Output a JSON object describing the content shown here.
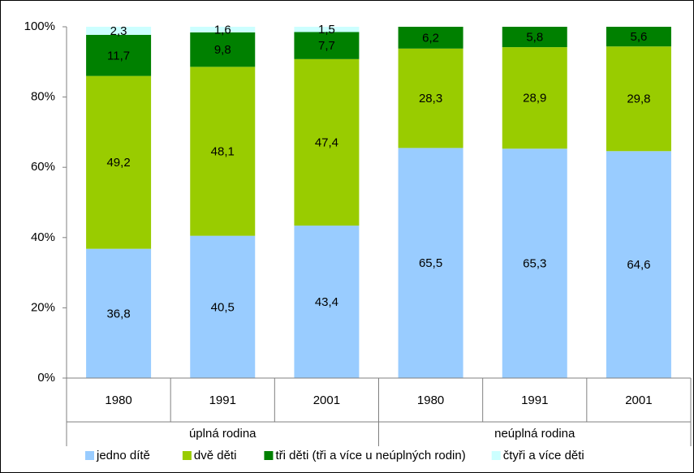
{
  "chart_data": {
    "type": "stacked_bar",
    "groups": [
      {
        "name": "úplná rodina",
        "categories": [
          "1980",
          "1991",
          "2001"
        ]
      },
      {
        "name": "neúplná rodina",
        "categories": [
          "1980",
          "1991",
          "2001"
        ]
      }
    ],
    "series": [
      {
        "name": "jedno dítě",
        "color": "#99ccff",
        "values": [
          36.8,
          40.5,
          43.4,
          65.5,
          65.3,
          64.6
        ],
        "value_labels": [
          "36,8",
          "40,5",
          "43,4",
          "65,5",
          "65,3",
          "64,6"
        ]
      },
      {
        "name": "dvě děti",
        "color": "#99cc00",
        "values": [
          49.2,
          48.1,
          47.4,
          28.3,
          28.9,
          29.8
        ],
        "value_labels": [
          "49,2",
          "48,1",
          "47,4",
          "28,3",
          "28,9",
          "29,8"
        ]
      },
      {
        "name": "tři děti (tři a více u neúplných rodin)",
        "color": "#008000",
        "values": [
          11.7,
          9.8,
          7.7,
          6.2,
          5.8,
          5.6
        ],
        "value_labels": [
          "11,7",
          "9,8",
          "7,7",
          "6,2",
          "5,8",
          "5,6"
        ]
      },
      {
        "name": "čtyři a více děti",
        "color": "#ccffff",
        "values": [
          2.3,
          1.6,
          1.5,
          null,
          null,
          null
        ],
        "value_labels": [
          "2,3",
          "1,6",
          "1,5",
          null,
          null,
          null
        ]
      }
    ],
    "ylim": [
      0,
      100
    ],
    "yticks": [
      {
        "value": 0,
        "label": "0%"
      },
      {
        "value": 20,
        "label": "20%"
      },
      {
        "value": 40,
        "label": "40%"
      },
      {
        "value": 60,
        "label": "60%"
      },
      {
        "value": 80,
        "label": "80%"
      },
      {
        "value": 100,
        "label": "100%"
      }
    ],
    "legend": "bottom"
  }
}
